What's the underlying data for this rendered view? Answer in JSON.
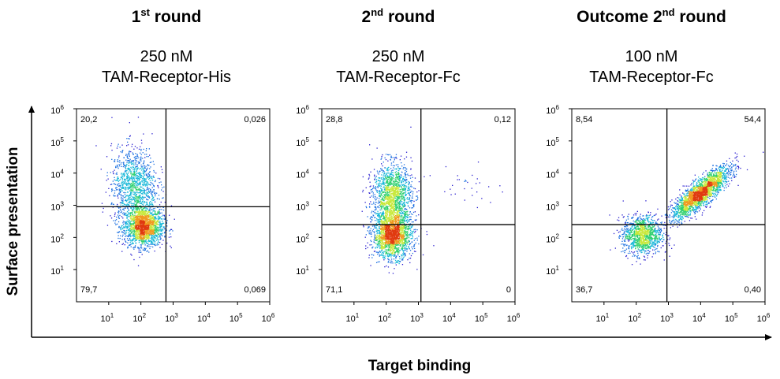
{
  "figure": {
    "y_axis_label": "Surface presentation",
    "x_axis_label": "Target binding"
  },
  "colors": {
    "axis": "#000000",
    "gate": "#000000",
    "density": [
      "#2a1fd0",
      "#1a6fe0",
      "#18b8d8",
      "#30d070",
      "#c8e83a",
      "#f09a20",
      "#e03a10"
    ]
  },
  "chart_data": [
    {
      "type": "scatter",
      "title_main": "1",
      "title_sup": "st",
      "title_rest": " round",
      "subtitle_line1": "250 nM",
      "subtitle_line2": "TAM-Receptor-His",
      "x_scale": "log10",
      "y_scale": "log10",
      "xlim": [
        1,
        1000000
      ],
      "ylim": [
        1,
        1000000
      ],
      "x_tick_values": [
        10,
        100,
        1000,
        10000,
        100000,
        1000000
      ],
      "y_tick_values": [
        10,
        100,
        1000,
        10000,
        100000,
        1000000
      ],
      "x_tick_base": "10",
      "x_tick_exponents": [
        "1",
        "2",
        "3",
        "4",
        "5",
        "6"
      ],
      "y_tick_base": "10",
      "y_tick_exponents": [
        "1",
        "2",
        "3",
        "4",
        "5",
        "6"
      ],
      "gate_x": 600,
      "gate_y": 900,
      "quadrants": {
        "upper_left": "20,2",
        "upper_right": "0,026",
        "lower_left": "79,7",
        "lower_right": "0,069"
      },
      "populations": [
        {
          "cx": 120,
          "cy": 220,
          "sx": 0.3,
          "sy": 0.3,
          "n": 1800
        },
        {
          "cx": 60,
          "cy": 4000,
          "sx": 0.35,
          "sy": 0.6,
          "n": 1200
        }
      ]
    },
    {
      "type": "scatter",
      "title_main": "2",
      "title_sup": "nd",
      "title_rest": " round",
      "subtitle_line1": "250 nM",
      "subtitle_line2": "TAM-Receptor-Fc",
      "x_scale": "log10",
      "y_scale": "log10",
      "xlim": [
        1,
        1000000
      ],
      "ylim": [
        1,
        1000000
      ],
      "x_tick_values": [
        10,
        100,
        1000,
        10000,
        100000,
        1000000
      ],
      "y_tick_values": [
        10,
        100,
        1000,
        10000,
        100000,
        1000000
      ],
      "x_tick_base": "10",
      "x_tick_exponents": [
        "1",
        "2",
        "3",
        "4",
        "5",
        "6"
      ],
      "y_tick_base": "10",
      "y_tick_exponents": [
        "1",
        "2",
        "3",
        "4",
        "5",
        "6"
      ],
      "gate_x": 1200,
      "gate_y": 250,
      "quadrants": {
        "upper_left": "28,8",
        "upper_right": "0,12",
        "lower_left": "71,1",
        "lower_right": "0"
      },
      "populations": [
        {
          "cx": 150,
          "cy": 120,
          "sx": 0.3,
          "sy": 0.35,
          "n": 1900
        },
        {
          "cx": 150,
          "cy": 2000,
          "sx": 0.3,
          "sy": 0.5,
          "n": 1500
        },
        {
          "cx": 40000,
          "cy": 5000,
          "sx": 0.5,
          "sy": 0.35,
          "n": 30
        }
      ]
    },
    {
      "type": "scatter",
      "title_main": "Outcome 2",
      "title_sup": "nd",
      "title_rest": " round",
      "subtitle_line1": "100 nM",
      "subtitle_line2": "TAM-Receptor-Fc",
      "x_scale": "log10",
      "y_scale": "log10",
      "xlim": [
        1,
        1000000
      ],
      "ylim": [
        1,
        1000000
      ],
      "x_tick_values": [
        10,
        100,
        1000,
        10000,
        100000,
        1000000
      ],
      "y_tick_values": [
        10,
        100,
        1000,
        10000,
        100000,
        1000000
      ],
      "x_tick_base": "10",
      "x_tick_exponents": [
        "1",
        "2",
        "3",
        "4",
        "5",
        "6"
      ],
      "y_tick_base": "10",
      "y_tick_exponents": [
        "1",
        "2",
        "3",
        "4",
        "5",
        "6"
      ],
      "gate_x": 900,
      "gate_y": 250,
      "quadrants": {
        "upper_left": "8,54",
        "upper_right": "54,4",
        "lower_left": "36,7",
        "lower_right": "0,40"
      },
      "populations": [
        {
          "cx": 150,
          "cy": 120,
          "sx": 0.3,
          "sy": 0.3,
          "n": 1200
        },
        {
          "cx": 10000,
          "cy": 2500,
          "sx": 0.45,
          "sy": 0.4,
          "n": 2200,
          "corr": 0.85
        }
      ]
    }
  ]
}
